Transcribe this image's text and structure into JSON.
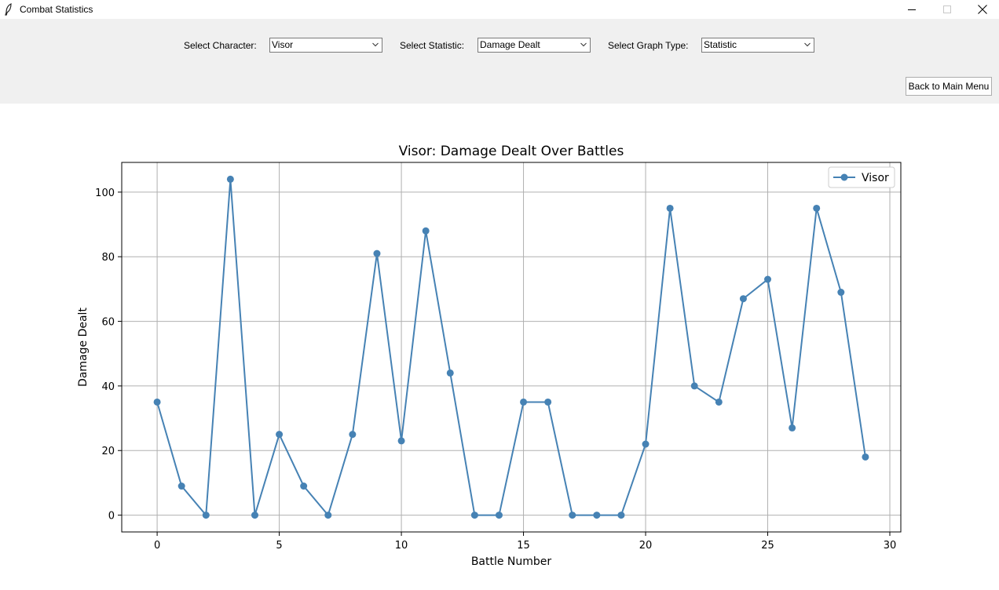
{
  "window": {
    "title": "Combat Statistics",
    "app_icon": "feather-icon"
  },
  "controls": {
    "character_label": "Select Character:",
    "character_value": "Visor",
    "statistic_label": "Select Statistic:",
    "statistic_value": "Damage Dealt",
    "graph_type_label": "Select Graph Type:",
    "graph_type_value": "Statistic",
    "back_button": "Back to Main Menu"
  },
  "chart_data": {
    "type": "line",
    "title": "Visor: Damage Dealt Over Battles",
    "xlabel": "Battle Number",
    "ylabel": "Damage Dealt",
    "xlim": [
      -1.45,
      30.45
    ],
    "ylim": [
      -5.2,
      109.2
    ],
    "x_ticks": [
      0,
      5,
      10,
      15,
      20,
      25,
      30
    ],
    "y_ticks": [
      0,
      20,
      40,
      60,
      80,
      100
    ],
    "grid": true,
    "legend_position": "top-right",
    "series": [
      {
        "name": "Visor",
        "color": "#4682b4",
        "marker": "circle",
        "x": [
          0,
          1,
          2,
          3,
          4,
          5,
          6,
          7,
          8,
          9,
          10,
          11,
          12,
          13,
          14,
          15,
          16,
          17,
          18,
          19,
          20,
          21,
          22,
          23,
          24,
          25,
          26,
          27,
          28,
          29
        ],
        "values": [
          35,
          9,
          0,
          104,
          0,
          25,
          9,
          0,
          25,
          81,
          23,
          88,
          44,
          0,
          0,
          35,
          35,
          0,
          0,
          0,
          22,
          95,
          40,
          35,
          67,
          73,
          27,
          95,
          69,
          18
        ]
      }
    ]
  }
}
